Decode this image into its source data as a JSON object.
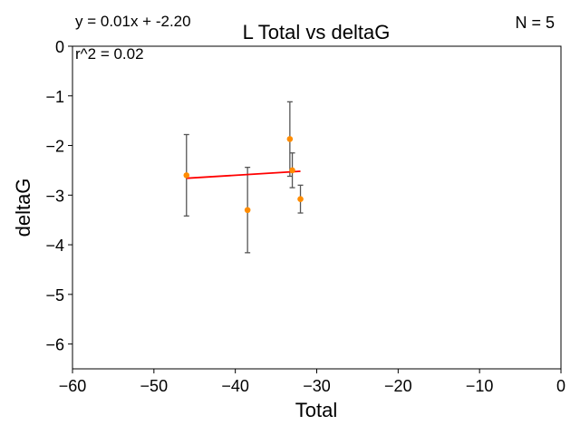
{
  "chart_data": {
    "type": "scatter",
    "title": "L Total vs deltaG",
    "xlabel": "Total",
    "ylabel": "deltaG",
    "xlim": [
      -60,
      0
    ],
    "ylim": [
      -6.5,
      0
    ],
    "xticks": [
      -60,
      -50,
      -40,
      -30,
      -20,
      -10,
      0
    ],
    "yticks": [
      0,
      -1,
      -2,
      -3,
      -4,
      -5,
      -6
    ],
    "grid": false,
    "points": [
      {
        "x": -46.0,
        "y": -2.6,
        "err": 0.82
      },
      {
        "x": -38.5,
        "y": -3.3,
        "err": 0.86
      },
      {
        "x": -33.3,
        "y": -1.87,
        "err": 0.75
      },
      {
        "x": -33.0,
        "y": -2.5,
        "err": 0.35
      },
      {
        "x": -32.0,
        "y": -3.08,
        "err": 0.28
      }
    ],
    "fit": {
      "slope": 0.01,
      "intercept": -2.2,
      "x_range": [
        -46.0,
        -32.0
      ],
      "color": "#ff0000"
    },
    "annotations": {
      "equation": "y = 0.01x + -2.20",
      "r2": "r^2 = 0.02",
      "n": "N = 5"
    },
    "colors": {
      "points": "#ff8c00",
      "errorbars": "#555555",
      "fit": "#ff0000"
    }
  }
}
